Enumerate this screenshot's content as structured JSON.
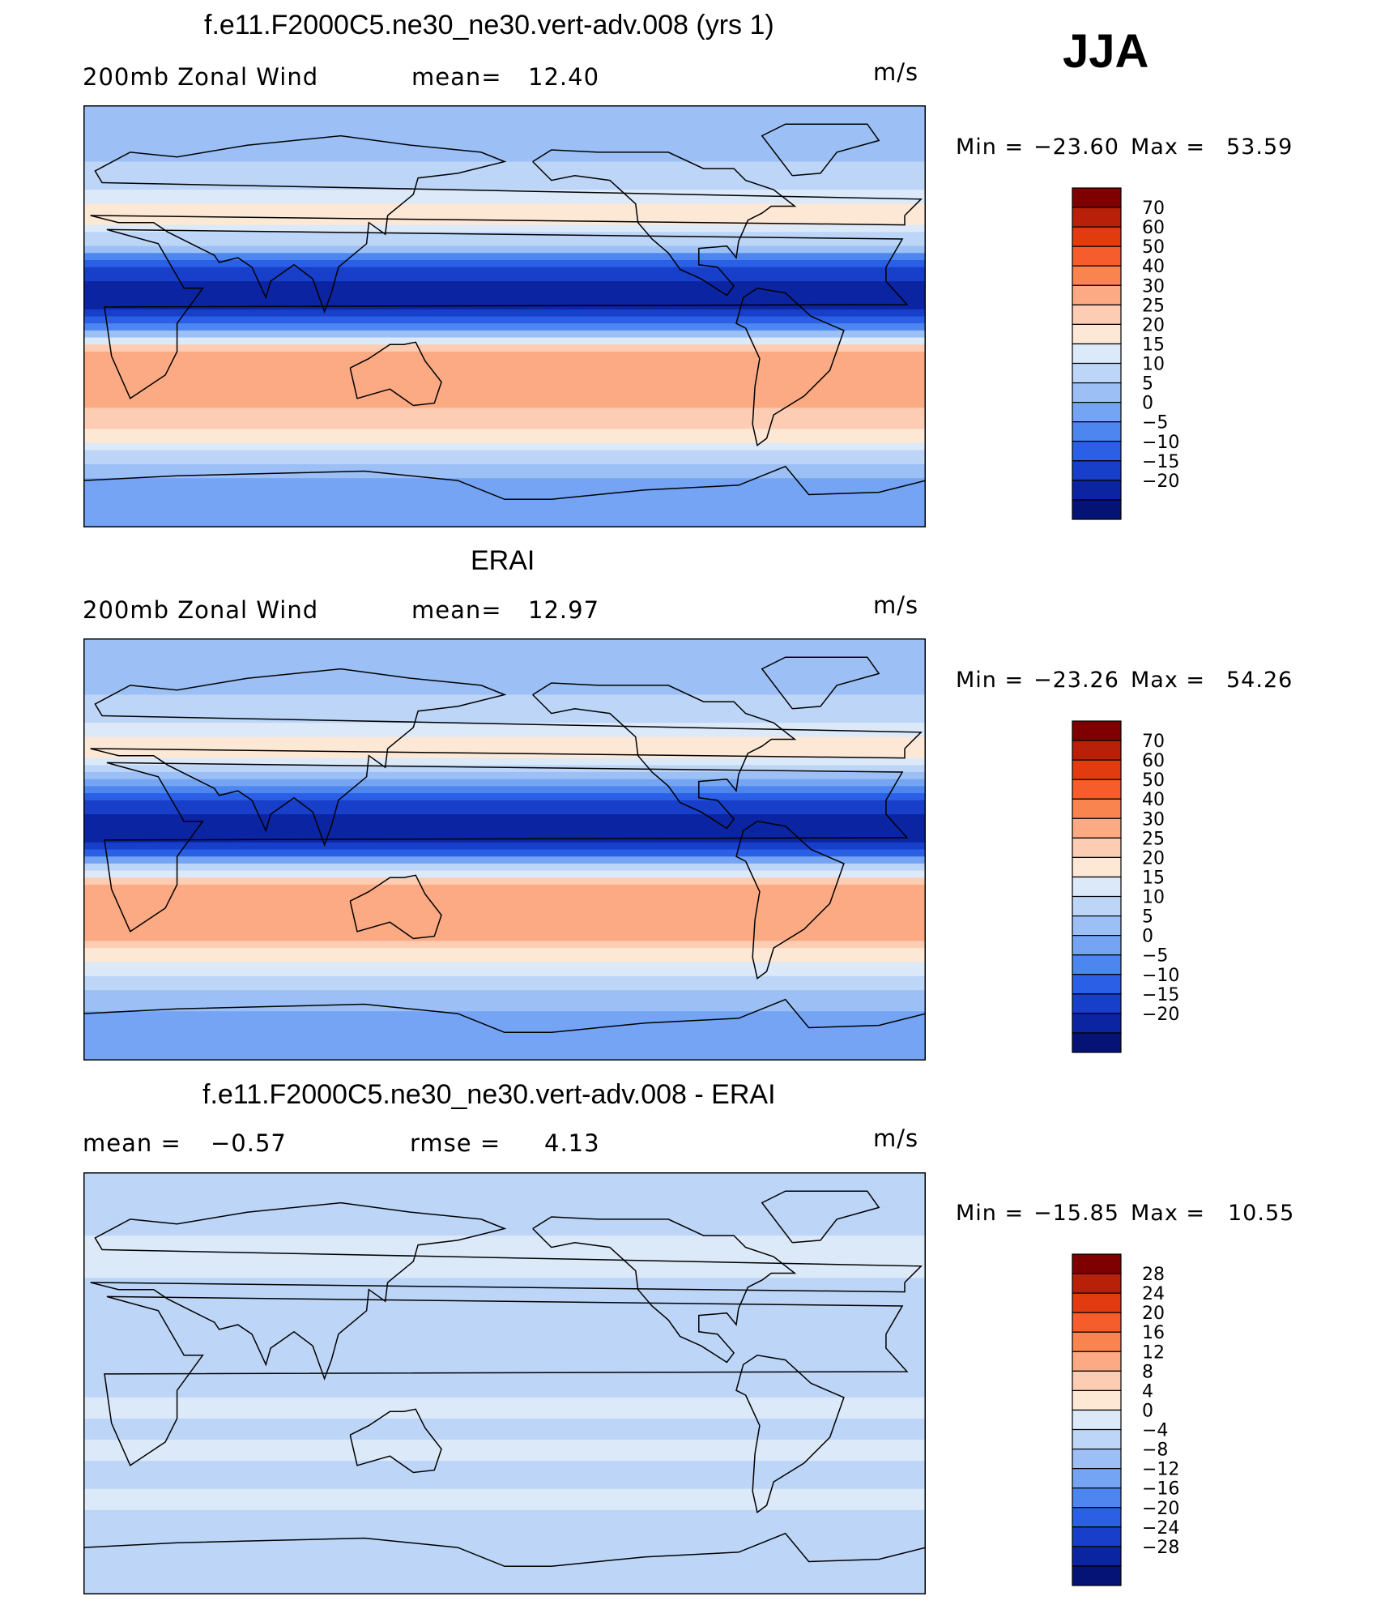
{
  "season": "JJA",
  "colorbars": {
    "mean": {
      "labels": [
        "70",
        "60",
        "50",
        "40",
        "30",
        "25",
        "20",
        "15",
        "10",
        "5",
        "0",
        "−5",
        "−10",
        "−15",
        "−20"
      ],
      "colors": [
        "#7f0000",
        "#b8200a",
        "#e13b10",
        "#f55e2c",
        "#f98450",
        "#fbaa83",
        "#fccdb3",
        "#fde8d6",
        "#dce9f9",
        "#bdd5f7",
        "#9cc0f6",
        "#74a4f3",
        "#4c86ee",
        "#2a5fe6",
        "#173fc9",
        "#0b24a2",
        "#041375"
      ]
    },
    "diff": {
      "labels": [
        "28",
        "24",
        "20",
        "16",
        "12",
        "8",
        "4",
        "0",
        "−4",
        "−8",
        "−12",
        "−16",
        "−20",
        "−24",
        "−28"
      ],
      "colors": [
        "#7f0000",
        "#b8200a",
        "#e13b10",
        "#f55e2c",
        "#f98450",
        "#fbaa83",
        "#fccdb3",
        "#fde8d6",
        "#dce9f9",
        "#bdd5f7",
        "#9cc0f6",
        "#74a4f3",
        "#4c86ee",
        "#2a5fe6",
        "#173fc9",
        "#0b24a2",
        "#041375"
      ]
    }
  },
  "chart_data": [
    {
      "type": "heatmap",
      "title": "f.e11.F2000C5.ne30_ne30.vert-adv.008 (yrs 1)",
      "variable": "200mb Zonal Wind",
      "mean_label": "mean=",
      "mean_value": "12.40",
      "units": "m/s",
      "min_label": "Min =",
      "min_value": "−23.60",
      "max_label": "Max =",
      "max_value": "53.59",
      "levels": [
        -20,
        -15,
        -10,
        -5,
        0,
        5,
        10,
        15,
        20,
        25,
        30,
        40,
        50,
        60,
        70
      ],
      "lat_profile": [
        [
          90,
          6
        ],
        [
          75,
          5
        ],
        [
          62,
          13
        ],
        [
          55,
          14
        ],
        [
          45,
          23
        ],
        [
          38,
          20
        ],
        [
          30,
          8
        ],
        [
          20,
          -10
        ],
        [
          12,
          -18
        ],
        [
          5,
          -20
        ],
        [
          -2,
          -8
        ],
        [
          -8,
          10
        ],
        [
          -15,
          30
        ],
        [
          -22,
          38
        ],
        [
          -30,
          38
        ],
        [
          -38,
          30
        ],
        [
          -45,
          26
        ],
        [
          -52,
          22
        ],
        [
          -60,
          12
        ],
        [
          -70,
          5
        ],
        [
          -90,
          2
        ]
      ]
    },
    {
      "type": "heatmap",
      "title": "ERAI",
      "variable": "200mb Zonal Wind",
      "mean_label": "mean=",
      "mean_value": "12.97",
      "units": "m/s",
      "min_label": "Min =",
      "min_value": "−23.26",
      "max_label": "Max =",
      "max_value": "54.26",
      "levels": [
        -20,
        -15,
        -10,
        -5,
        0,
        5,
        10,
        15,
        20,
        25,
        30,
        40,
        50,
        60,
        70
      ],
      "lat_profile": [
        [
          90,
          5
        ],
        [
          75,
          6
        ],
        [
          62,
          12
        ],
        [
          55,
          14
        ],
        [
          45,
          24
        ],
        [
          38,
          18
        ],
        [
          30,
          6
        ],
        [
          20,
          -10
        ],
        [
          12,
          -19
        ],
        [
          5,
          -18
        ],
        [
          -2,
          -8
        ],
        [
          -8,
          12
        ],
        [
          -15,
          32
        ],
        [
          -22,
          40
        ],
        [
          -30,
          38
        ],
        [
          -38,
          30
        ],
        [
          -45,
          22
        ],
        [
          -52,
          18
        ],
        [
          -60,
          10
        ],
        [
          -70,
          5
        ],
        [
          -90,
          2
        ]
      ]
    },
    {
      "type": "heatmap",
      "title": "f.e11.F2000C5.ne30_ne30.vert-adv.008 - ERAI",
      "mean_label": "mean =",
      "mean_value": "−0.57",
      "rmse_label": "rmse =",
      "rmse_value": "4.13",
      "units": "m/s",
      "min_label": "Min =",
      "min_value": "−15.85",
      "max_label": "Max =",
      "max_value": "10.55",
      "levels": [
        -28,
        -24,
        -20,
        -16,
        -12,
        -8,
        -4,
        0,
        4,
        8,
        12,
        16,
        20,
        24,
        28
      ],
      "lat_profile": [
        [
          90,
          -2
        ],
        [
          70,
          -2
        ],
        [
          55,
          2
        ],
        [
          45,
          1
        ],
        [
          40,
          -3
        ],
        [
          30,
          -4
        ],
        [
          20,
          -4
        ],
        [
          10,
          -2
        ],
        [
          0,
          -1
        ],
        [
          -10,
          1
        ],
        [
          -20,
          -1
        ],
        [
          -30,
          1
        ],
        [
          -40,
          -2
        ],
        [
          -50,
          2
        ],
        [
          -60,
          -2
        ],
        [
          -75,
          -1
        ],
        [
          -90,
          -1
        ]
      ]
    }
  ]
}
